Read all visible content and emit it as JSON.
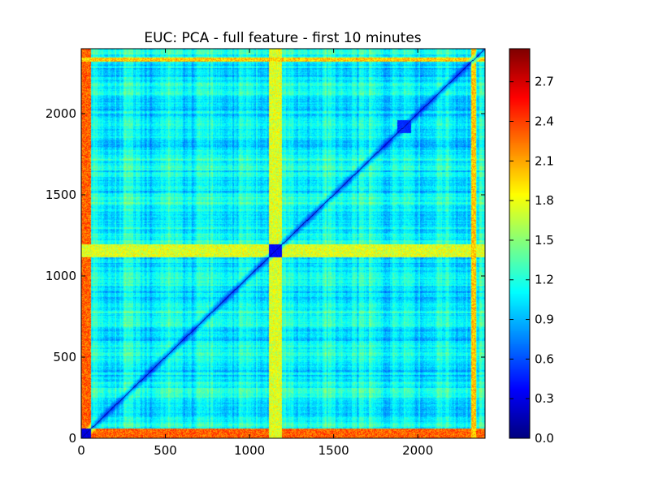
{
  "chart_data": {
    "type": "heatmap",
    "title": "EUC: PCA - full feature - first 10 minutes",
    "xlabel": "",
    "ylabel": "",
    "xlim": [
      0,
      2400
    ],
    "ylim": [
      0,
      2400
    ],
    "x_ticks": [
      "0",
      "500",
      "1000",
      "1500",
      "2000"
    ],
    "y_ticks": [
      "0",
      "500",
      "1000",
      "1500",
      "2000"
    ],
    "colorbar": {
      "colormap": "jet",
      "range": [
        0.0,
        2.95
      ],
      "ticks": [
        "0.0",
        "0.3",
        "0.6",
        "0.9",
        "1.2",
        "1.5",
        "1.8",
        "2.1",
        "2.4",
        "2.7"
      ]
    },
    "matrix": {
      "size": 2400,
      "symmetric": true,
      "diagonal_value": 0.0,
      "typical_value": 1.1,
      "high_value_bands": [
        {
          "range": [
            0,
            60
          ],
          "value": 2.3
        },
        {
          "range": [
            1115,
            1195
          ],
          "value": 1.75
        },
        {
          "range": [
            2320,
            2345
          ],
          "value": 2.0
        }
      ],
      "low_value_blocks": [
        {
          "range": [
            0,
            60
          ],
          "value": 0.2
        },
        {
          "range": [
            1115,
            1195
          ],
          "value": 0.3
        },
        {
          "range": [
            1880,
            1960
          ],
          "value": 0.4
        }
      ]
    }
  }
}
